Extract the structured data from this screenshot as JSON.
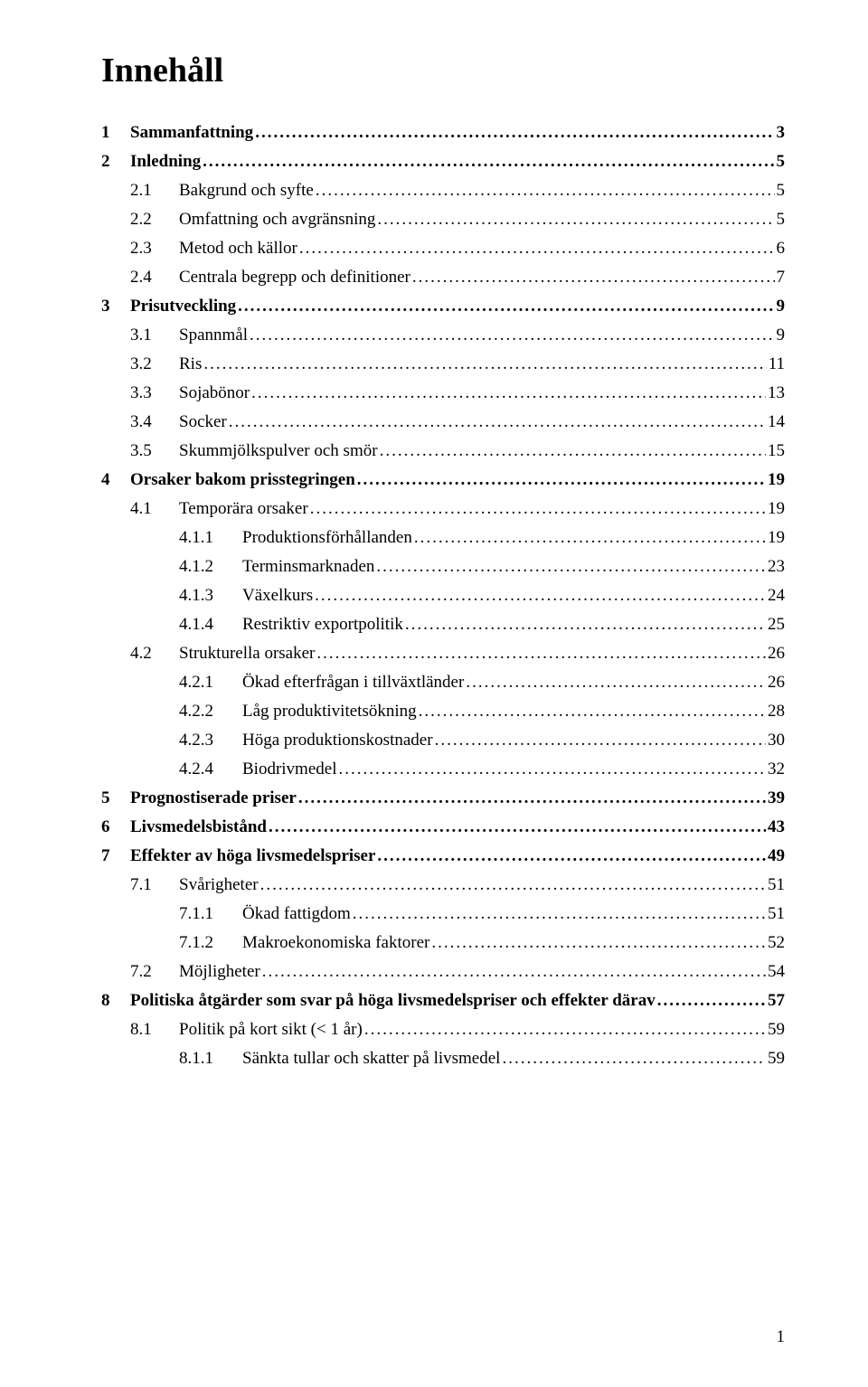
{
  "title": "Innehåll",
  "page_number": "1",
  "typography": {
    "title_fontsize": 38,
    "body_fontsize": 19,
    "font_family": "Times New Roman",
    "text_color": "#000000",
    "background_color": "#ffffff"
  },
  "toc": [
    {
      "level": 1,
      "bold": true,
      "num": "1",
      "text": "Sammanfattning",
      "page": "3"
    },
    {
      "level": 1,
      "bold": true,
      "num": "2",
      "text": "Inledning",
      "page": "5"
    },
    {
      "level": 2,
      "bold": false,
      "num": "2.1",
      "text": "Bakgrund och syfte",
      "page": "5"
    },
    {
      "level": 2,
      "bold": false,
      "num": "2.2",
      "text": "Omfattning och avgränsning",
      "page": "5"
    },
    {
      "level": 2,
      "bold": false,
      "num": "2.3",
      "text": "Metod och källor",
      "page": "6"
    },
    {
      "level": 2,
      "bold": false,
      "num": "2.4",
      "text": "Centrala begrepp och definitioner",
      "page": "7"
    },
    {
      "level": 1,
      "bold": true,
      "num": "3",
      "text": "Prisutveckling",
      "page": "9"
    },
    {
      "level": 2,
      "bold": false,
      "num": "3.1",
      "text": "Spannmål",
      "page": "9"
    },
    {
      "level": 2,
      "bold": false,
      "num": "3.2",
      "text": "Ris",
      "page": "11"
    },
    {
      "level": 2,
      "bold": false,
      "num": "3.3",
      "text": "Sojabönor",
      "page": "13"
    },
    {
      "level": 2,
      "bold": false,
      "num": "3.4",
      "text": "Socker",
      "page": "14"
    },
    {
      "level": 2,
      "bold": false,
      "num": "3.5",
      "text": "Skummjölkspulver och smör",
      "page": "15"
    },
    {
      "level": 1,
      "bold": true,
      "num": "4",
      "text": "Orsaker bakom prisstegringen",
      "page": "19"
    },
    {
      "level": 2,
      "bold": false,
      "num": "4.1",
      "text": "Temporära orsaker",
      "page": "19"
    },
    {
      "level": 3,
      "bold": false,
      "num": "4.1.1",
      "text": "Produktionsförhållanden",
      "page": "19"
    },
    {
      "level": 3,
      "bold": false,
      "num": "4.1.2",
      "text": "Terminsmarknaden",
      "page": "23"
    },
    {
      "level": 3,
      "bold": false,
      "num": "4.1.3",
      "text": "Växelkurs",
      "page": "24"
    },
    {
      "level": 3,
      "bold": false,
      "num": "4.1.4",
      "text": "Restriktiv exportpolitik",
      "page": "25"
    },
    {
      "level": 2,
      "bold": false,
      "num": "4.2",
      "text": "Strukturella orsaker",
      "page": "26"
    },
    {
      "level": 3,
      "bold": false,
      "num": "4.2.1",
      "text": "Ökad efterfrågan i tillväxtländer",
      "page": "26"
    },
    {
      "level": 3,
      "bold": false,
      "num": "4.2.2",
      "text": "Låg produktivitetsökning",
      "page": "28"
    },
    {
      "level": 3,
      "bold": false,
      "num": "4.2.3",
      "text": "Höga produktionskostnader",
      "page": "30"
    },
    {
      "level": 3,
      "bold": false,
      "num": "4.2.4",
      "text": "Biodrivmedel",
      "page": "32"
    },
    {
      "level": 1,
      "bold": true,
      "num": "5",
      "text": "Prognostiserade priser",
      "page": "39"
    },
    {
      "level": 1,
      "bold": true,
      "num": "6",
      "text": "Livsmedelsbistånd",
      "page": "43"
    },
    {
      "level": 1,
      "bold": true,
      "num": "7",
      "text": "Effekter av höga livsmedelspriser",
      "page": "49"
    },
    {
      "level": 2,
      "bold": false,
      "num": "7.1",
      "text": "Svårigheter",
      "page": "51"
    },
    {
      "level": 3,
      "bold": false,
      "num": "7.1.1",
      "text": "Ökad fattigdom",
      "page": "51"
    },
    {
      "level": 3,
      "bold": false,
      "num": "7.1.2",
      "text": "Makroekonomiska faktorer",
      "page": "52"
    },
    {
      "level": 2,
      "bold": false,
      "num": "7.2",
      "text": "Möjligheter",
      "page": "54"
    },
    {
      "level": 1,
      "bold": true,
      "num": "8",
      "text": "Politiska åtgärder som svar på höga livsmedelspriser och effekter därav",
      "page": "57"
    },
    {
      "level": 2,
      "bold": false,
      "num": "8.1",
      "text": "Politik på kort sikt (< 1 år)",
      "page": "59"
    },
    {
      "level": 3,
      "bold": false,
      "num": "8.1.1",
      "text": "Sänkta tullar och skatter på livsmedel",
      "page": "59"
    }
  ]
}
